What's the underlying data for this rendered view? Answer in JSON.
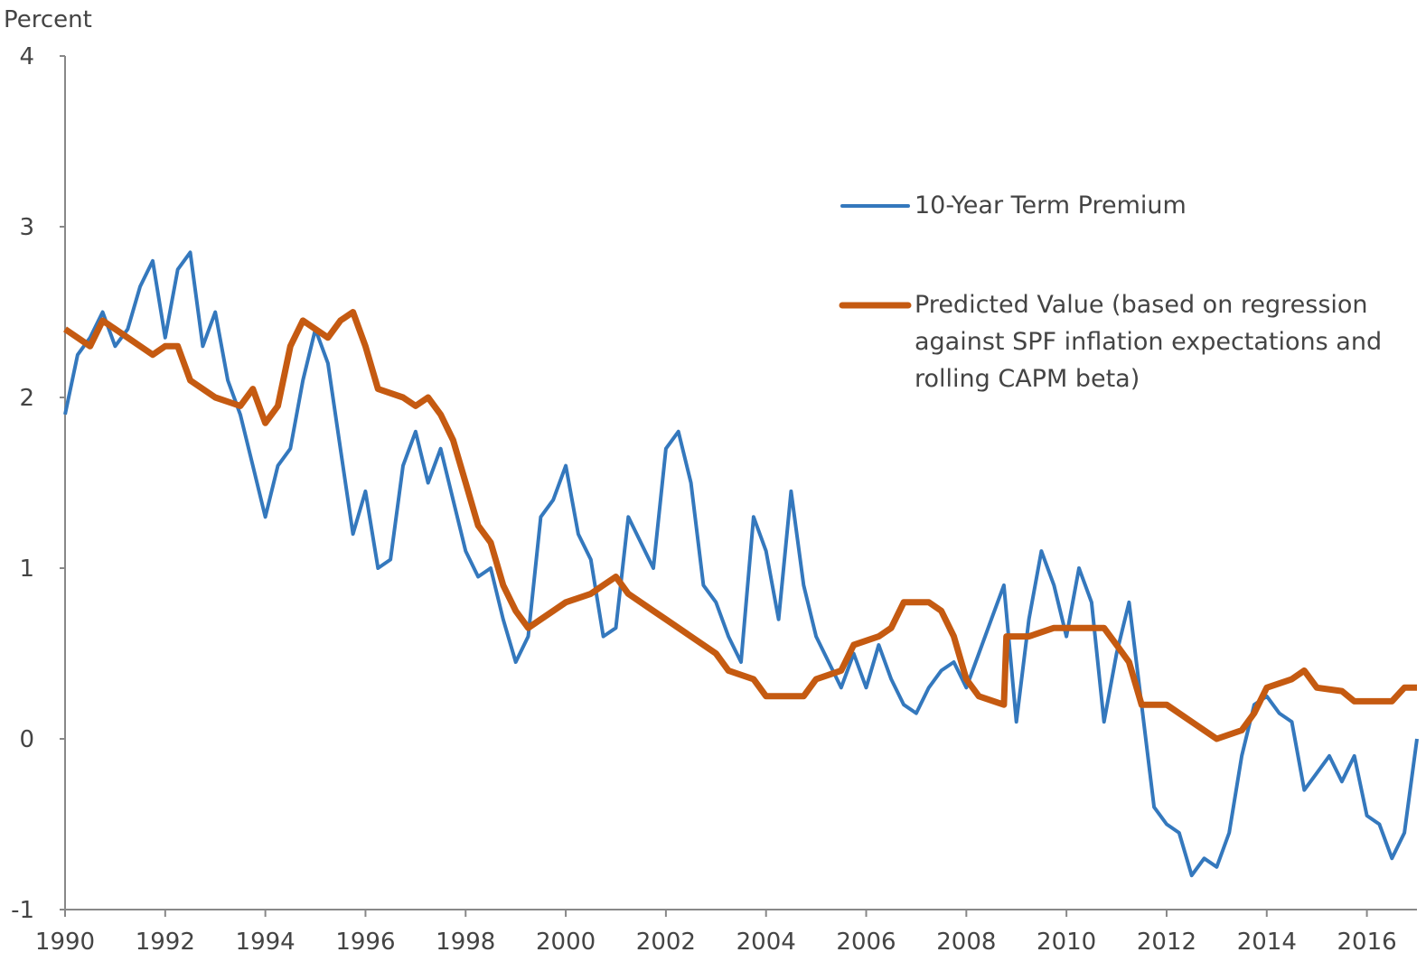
{
  "chart_data": {
    "type": "line",
    "y_axis_label": "Percent",
    "xlim": [
      1990,
      2017
    ],
    "xticks": [
      1990,
      1992,
      1994,
      1996,
      1998,
      2000,
      2002,
      2004,
      2006,
      2008,
      2010,
      2012,
      2014,
      2016
    ],
    "ylim": [
      -1,
      4
    ],
    "yticks": [
      -1,
      0,
      1,
      2,
      3,
      4
    ],
    "grid": false,
    "legend": "right",
    "series": [
      {
        "name": "10-Year Term Premium",
        "color": "#3478bd",
        "width": 4,
        "x": [
          1990.0,
          1990.25,
          1990.5,
          1990.75,
          1991.0,
          1991.25,
          1991.5,
          1991.75,
          1992.0,
          1992.25,
          1992.5,
          1992.75,
          1993.0,
          1993.25,
          1993.5,
          1993.75,
          1994.0,
          1994.25,
          1994.5,
          1994.75,
          1995.0,
          1995.25,
          1995.5,
          1995.75,
          1996.0,
          1996.25,
          1996.5,
          1996.75,
          1997.0,
          1997.25,
          1997.5,
          1997.75,
          1998.0,
          1998.25,
          1998.5,
          1998.75,
          1999.0,
          1999.25,
          1999.5,
          1999.75,
          2000.0,
          2000.25,
          2000.5,
          2000.75,
          2001.0,
          2001.25,
          2001.5,
          2001.75,
          2002.0,
          2002.25,
          2002.5,
          2002.75,
          2003.0,
          2003.25,
          2003.5,
          2003.75,
          2004.0,
          2004.25,
          2004.5,
          2004.75,
          2005.0,
          2005.25,
          2005.5,
          2005.75,
          2006.0,
          2006.25,
          2006.5,
          2006.75,
          2007.0,
          2007.25,
          2007.5,
          2007.75,
          2008.0,
          2008.25,
          2008.5,
          2008.75,
          2009.0,
          2009.25,
          2009.5,
          2009.75,
          2010.0,
          2010.25,
          2010.5,
          2010.75,
          2011.0,
          2011.25,
          2011.5,
          2011.75,
          2012.0,
          2012.25,
          2012.5,
          2012.75,
          2013.0,
          2013.25,
          2013.5,
          2013.75,
          2014.0,
          2014.25,
          2014.5,
          2014.75,
          2015.0,
          2015.25,
          2015.5,
          2015.75,
          2016.0,
          2016.25,
          2016.5,
          2016.75,
          2017.0
        ],
        "values": [
          1.9,
          2.25,
          2.35,
          2.5,
          2.3,
          2.4,
          2.65,
          2.8,
          2.35,
          2.75,
          2.85,
          2.3,
          2.5,
          2.1,
          1.9,
          1.6,
          1.3,
          1.6,
          1.7,
          2.1,
          2.4,
          2.2,
          1.7,
          1.2,
          1.45,
          1.0,
          1.05,
          1.6,
          1.8,
          1.5,
          1.7,
          1.4,
          1.1,
          0.95,
          1.0,
          0.7,
          0.45,
          0.6,
          1.3,
          1.4,
          1.6,
          1.2,
          1.05,
          0.6,
          0.65,
          1.3,
          1.15,
          1.0,
          1.7,
          1.8,
          1.5,
          0.9,
          0.8,
          0.6,
          0.45,
          1.3,
          1.1,
          0.7,
          1.45,
          0.9,
          0.6,
          0.45,
          0.3,
          0.5,
          0.3,
          0.55,
          0.35,
          0.2,
          0.15,
          0.3,
          0.4,
          0.45,
          0.3,
          0.5,
          0.7,
          0.9,
          0.1,
          0.7,
          1.1,
          0.9,
          0.6,
          1.0,
          0.8,
          0.1,
          0.5,
          0.8,
          0.2,
          -0.4,
          -0.5,
          -0.55,
          -0.8,
          -0.7,
          -0.75,
          -0.55,
          -0.1,
          0.2,
          0.25,
          0.15,
          0.1,
          -0.3,
          -0.2,
          -0.1,
          -0.25,
          -0.1,
          -0.45,
          -0.5,
          -0.7,
          -0.55,
          0.0
        ]
      },
      {
        "name": "Predicted Value (based on regression against SPF inflation expectations and rolling CAPM beta)",
        "color": "#c55a11",
        "width": 7,
        "x": [
          1990.0,
          1990.5,
          1990.75,
          1991.25,
          1991.75,
          1992.0,
          1992.25,
          1992.5,
          1993.0,
          1993.5,
          1993.75,
          1994.0,
          1994.25,
          1994.5,
          1994.75,
          1995.25,
          1995.5,
          1995.75,
          1996.0,
          1996.25,
          1996.75,
          1997.0,
          1997.25,
          1997.5,
          1997.75,
          1998.0,
          1998.25,
          1998.5,
          1998.75,
          1999.0,
          1999.25,
          1999.5,
          1999.75,
          2000.0,
          2000.5,
          2000.75,
          2001.0,
          2001.25,
          2001.75,
          2002.0,
          2002.5,
          2003.0,
          2003.25,
          2003.75,
          2004.0,
          2004.5,
          2004.75,
          2005.0,
          2005.5,
          2005.75,
          2006.25,
          2006.5,
          2006.75,
          2007.25,
          2007.5,
          2007.75,
          2008.0,
          2008.25,
          2008.75,
          2008.8,
          2009.25,
          2009.75,
          2010.5,
          2010.75,
          2011.0,
          2011.25,
          2011.5,
          2012.0,
          2012.5,
          2013.0,
          2013.5,
          2013.75,
          2014.0,
          2014.5,
          2014.75,
          2015.0,
          2015.5,
          2015.75,
          2016.5,
          2016.75,
          2017.0
        ],
        "values": [
          2.4,
          2.3,
          2.45,
          2.35,
          2.25,
          2.3,
          2.3,
          2.1,
          2.0,
          1.95,
          2.05,
          1.85,
          1.95,
          2.3,
          2.45,
          2.35,
          2.45,
          2.5,
          2.3,
          2.05,
          2.0,
          1.95,
          2.0,
          1.9,
          1.75,
          1.5,
          1.25,
          1.15,
          0.9,
          0.75,
          0.65,
          0.7,
          0.75,
          0.8,
          0.85,
          0.9,
          0.95,
          0.85,
          0.75,
          0.7,
          0.6,
          0.5,
          0.4,
          0.35,
          0.25,
          0.25,
          0.25,
          0.35,
          0.4,
          0.55,
          0.6,
          0.65,
          0.8,
          0.8,
          0.75,
          0.6,
          0.35,
          0.25,
          0.2,
          0.6,
          0.6,
          0.65,
          0.65,
          0.65,
          0.55,
          0.45,
          0.2,
          0.2,
          0.1,
          0.0,
          0.05,
          0.15,
          0.3,
          0.35,
          0.4,
          0.3,
          0.28,
          0.22,
          0.22,
          0.3,
          0.3
        ]
      }
    ]
  }
}
